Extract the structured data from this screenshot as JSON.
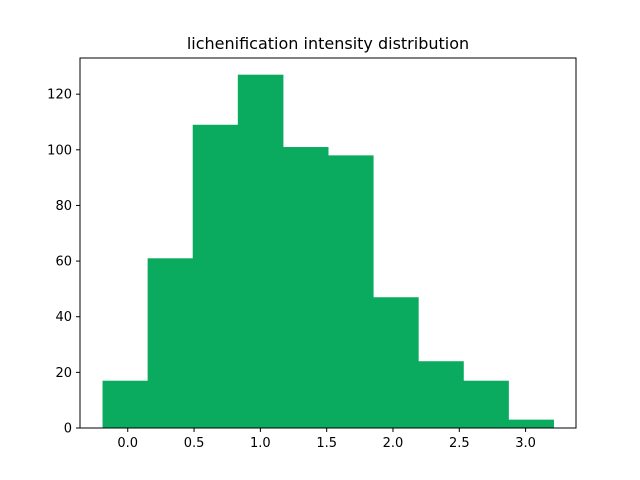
{
  "chart_data": {
    "type": "bar",
    "title": "lichenification intensity distribution",
    "xlabel": "",
    "ylabel": "",
    "bin_edges": [
      -0.19,
      0.15,
      0.49,
      0.83,
      1.17,
      1.51,
      1.85,
      2.19,
      2.53,
      2.87,
      3.21
    ],
    "values": [
      17,
      61,
      109,
      127,
      101,
      98,
      47,
      24,
      17,
      3
    ],
    "xlim": [
      -0.36,
      3.38
    ],
    "ylim": [
      0,
      133
    ],
    "xticks": [
      0.0,
      0.5,
      1.0,
      1.5,
      2.0,
      2.5,
      3.0
    ],
    "xtick_labels": [
      "0.0",
      "0.5",
      "1.0",
      "1.5",
      "2.0",
      "2.5",
      "3.0"
    ],
    "yticks": [
      0,
      20,
      40,
      60,
      80,
      100,
      120
    ],
    "ytick_labels": [
      "0",
      "20",
      "40",
      "60",
      "80",
      "100",
      "120"
    ],
    "grid": false,
    "bar_color": "#0aab5f"
  }
}
